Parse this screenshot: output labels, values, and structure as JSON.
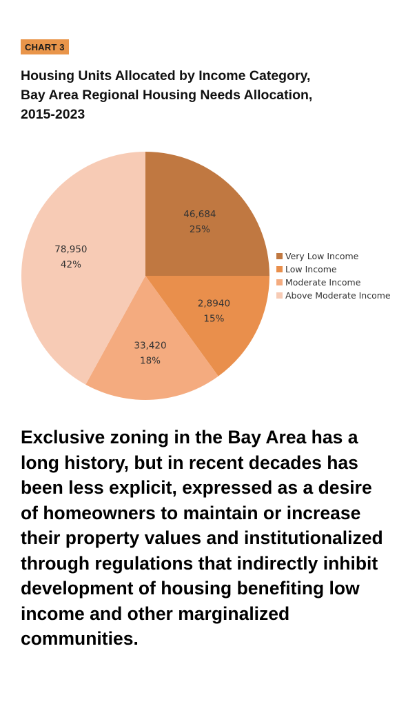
{
  "header": {
    "badge": "CHART 3",
    "title": "Housing Units Allocated by Income Category, Bay Area Regional Housing Needs Allocation, 2015-2023"
  },
  "chart_data": {
    "type": "pie",
    "slices": [
      {
        "name": "Very Low Income",
        "value_label": "46,684",
        "percent": 25,
        "percent_label": "25%",
        "color": "#c07841"
      },
      {
        "name": "Low Income",
        "value_label": "2,8940",
        "percent": 15,
        "percent_label": "15%",
        "color": "#e98f4c"
      },
      {
        "name": "Moderate Income",
        "value_label": "33,420",
        "percent": 18,
        "percent_label": "18%",
        "color": "#f4ab7f"
      },
      {
        "name": "Above Moderate Income",
        "value_label": "78,950",
        "percent": 42,
        "percent_label": "42%",
        "color": "#f7cbb5"
      }
    ],
    "legend_position": "right"
  },
  "body": {
    "paragraph": "Exclusive zoning in the Bay Area has a long history, but in recent decades has been less explicit, expressed as a desire of homeowners to maintain or increase their property values and institutionalized through regulations that indirectly inhibit development of housing benefiting low income and other marginalized communities."
  }
}
